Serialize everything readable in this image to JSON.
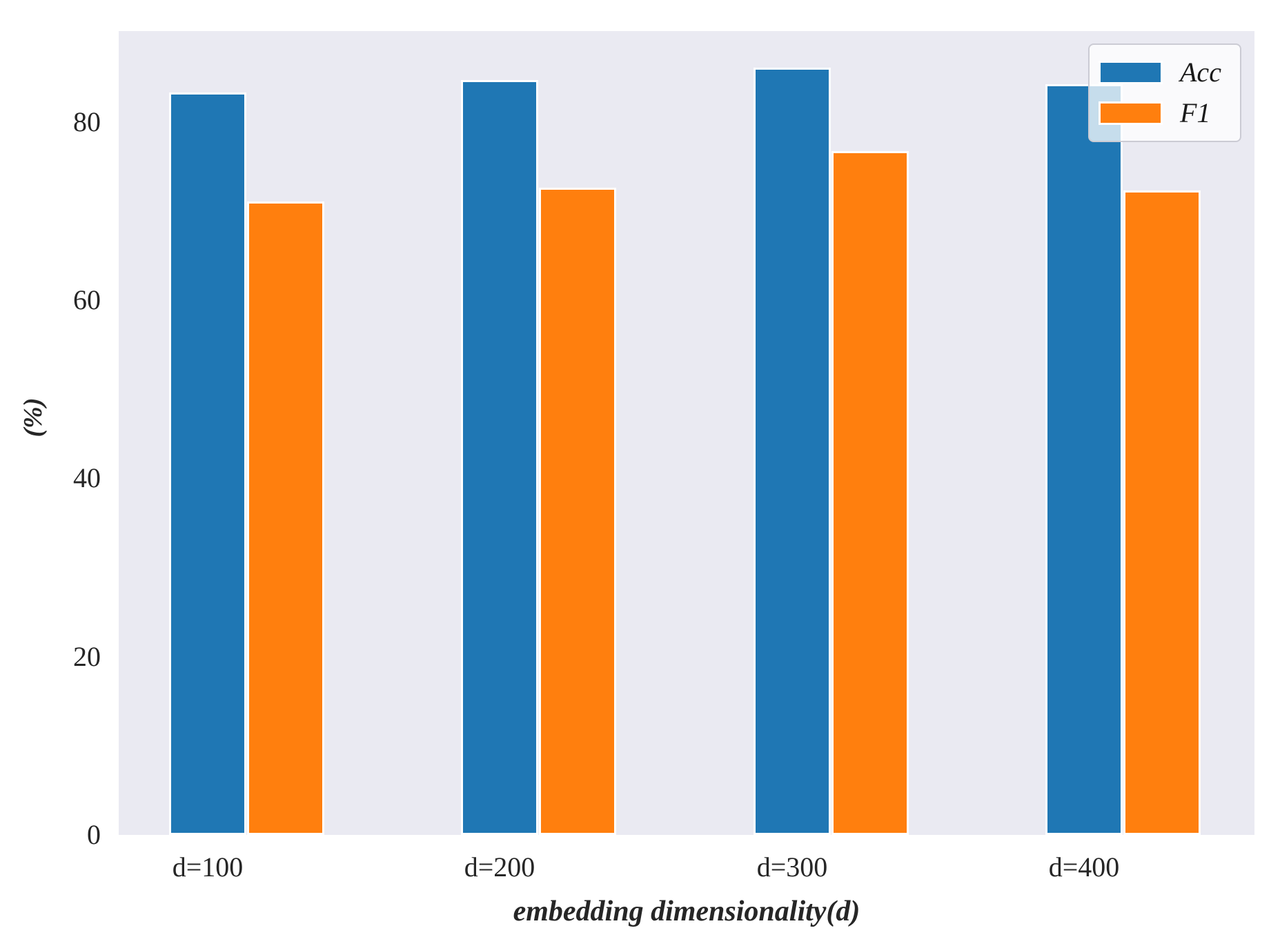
{
  "chart_data": {
    "type": "bar",
    "categories": [
      "d=100",
      "d=200",
      "d=300",
      "d=400"
    ],
    "series": [
      {
        "name": "Acc",
        "color": "#1f77b4",
        "values": [
          83.3,
          84.7,
          86.1,
          84.2
        ]
      },
      {
        "name": "F1",
        "color": "#ff7f0e",
        "values": [
          71.1,
          72.6,
          76.7,
          72.3
        ]
      }
    ],
    "title": "",
    "xlabel": "embedding dimensionality(d)",
    "ylabel": "(%)",
    "yticks": [
      0,
      20,
      40,
      60,
      80
    ],
    "ylim": [
      0,
      90.2
    ],
    "grid": false,
    "legend_position": "upper right",
    "plot_bg_color": "#eaeaf2",
    "bar_edge_color": "#ffffff"
  },
  "legend": {
    "items": [
      {
        "label": "Acc",
        "color": "#1f77b4"
      },
      {
        "label": "F1",
        "color": "#ff7f0e"
      }
    ]
  }
}
